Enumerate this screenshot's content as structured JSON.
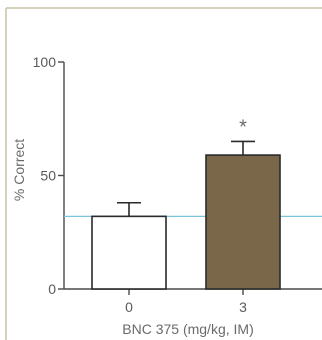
{
  "chart_data": {
    "type": "bar",
    "categories": [
      "0",
      "3"
    ],
    "values": [
      32,
      59
    ],
    "errors": [
      6,
      6
    ],
    "bar_fills": [
      "#ffffff",
      "#7a6749"
    ],
    "bar_stroke": "#2a2a2a",
    "significance": [
      "",
      "*"
    ],
    "reference_line": {
      "value": 32,
      "color": "#7cc4dc"
    },
    "ylim": [
      0,
      100
    ],
    "yticks": [
      0,
      50,
      100
    ],
    "xlabel": "BNC 375 (mg/kg, IM)",
    "ylabel": "% Correct",
    "frame_color": "#c7c2a6",
    "axis_color": "#4a4a4a",
    "grid": false
  }
}
